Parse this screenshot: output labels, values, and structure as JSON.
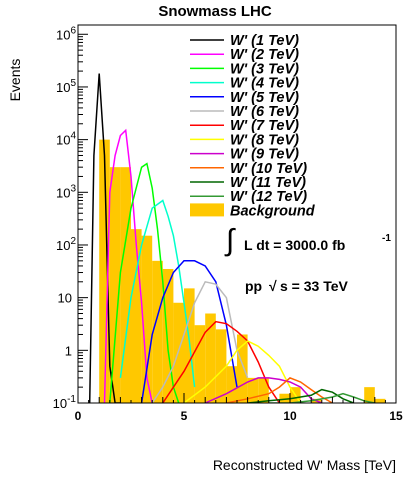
{
  "chart_data": {
    "type": "line",
    "title": "Snowmass LHC",
    "xlabel": "Reconstructed W' Mass [TeV]",
    "ylabel": "Events",
    "xlim": [
      0,
      15
    ],
    "ylim": [
      0.1,
      1500000
    ],
    "yscale": "log",
    "x_ticks": [
      "0",
      "5",
      "10",
      "15"
    ],
    "y_ticks": [
      {
        "base": "10",
        "exp": "-1",
        "value": 0.1
      },
      {
        "base": "1",
        "exp": "",
        "value": 1
      },
      {
        "base": "10",
        "exp": "",
        "value": 10
      },
      {
        "base": "10",
        "exp": "2",
        "value": 100
      },
      {
        "base": "10",
        "exp": "3",
        "value": 1000
      },
      {
        "base": "10",
        "exp": "4",
        "value": 10000
      },
      {
        "base": "10",
        "exp": "5",
        "value": 100000
      },
      {
        "base": "10",
        "exp": "6",
        "value": 1000000
      }
    ],
    "legend_position": "top-right",
    "background": {
      "name": "Background",
      "color": "#ffc800",
      "bin_width": 0.5,
      "bin_edges_start": 0.5,
      "values": [
        0.1,
        10000,
        3000,
        3000,
        200,
        150,
        50,
        35,
        8,
        15,
        3,
        5,
        2.5,
        0.5,
        2,
        0.3,
        0.3,
        0.1,
        0.15,
        0.2,
        0.1,
        0.12,
        0.1,
        0.1,
        0.1,
        0.1,
        0.2,
        0.12
      ]
    },
    "series": [
      {
        "name": "W' (1 TeV)",
        "color": "#000000",
        "x": [
          0.55,
          0.75,
          1.0,
          1.25,
          1.5,
          1.75,
          2.0
        ],
        "values": [
          0.1,
          5000,
          180000,
          5000,
          0.5,
          0.1,
          0.1
        ]
      },
      {
        "name": "W' (2 TeV)",
        "color": "#ff00ff",
        "x": [
          1.25,
          1.5,
          1.75,
          2.0,
          2.25,
          2.5,
          2.75,
          3.0,
          3.25,
          3.5
        ],
        "values": [
          0.1,
          1000,
          5000,
          12000,
          15000,
          2000,
          100,
          8,
          0.3,
          0.1
        ]
      },
      {
        "name": "W' (3 TeV)",
        "color": "#00ff00",
        "x": [
          1.5,
          2.0,
          2.5,
          3.0,
          3.25,
          3.5,
          3.75,
          4.0,
          4.25,
          4.5,
          4.75
        ],
        "values": [
          0.1,
          30,
          500,
          3000,
          3500,
          1200,
          200,
          20,
          1,
          0.2,
          0.1
        ]
      },
      {
        "name": "W' (4 TeV)",
        "color": "#00ffcc",
        "x": [
          2.0,
          2.5,
          3.0,
          3.5,
          4.0,
          4.25,
          4.5,
          4.75,
          5.0,
          5.25,
          5.5
        ],
        "values": [
          0.3,
          10,
          100,
          500,
          700,
          350,
          150,
          40,
          8,
          1.5,
          0.2
        ]
      },
      {
        "name": "W' (5 TeV)",
        "color": "#0000ff",
        "x": [
          3.0,
          3.5,
          4.0,
          4.5,
          5.0,
          5.5,
          6.0,
          6.5,
          7.0,
          7.5
        ],
        "values": [
          0.1,
          2,
          10,
          30,
          50,
          50,
          40,
          20,
          3,
          0.2
        ]
      },
      {
        "name": "W' (6 TeV)",
        "color": "#bbbbbb",
        "x": [
          3.5,
          4.0,
          4.5,
          5.0,
          5.5,
          6.0,
          6.5,
          7.0,
          7.5,
          8.0
        ],
        "values": [
          0.1,
          0.2,
          0.5,
          2,
          8,
          20,
          18,
          10,
          1,
          0.3
        ]
      },
      {
        "name": "W' (7 TeV)",
        "color": "#ff0000",
        "x": [
          4.0,
          5.0,
          6.0,
          6.5,
          7.0,
          7.5,
          8.0,
          8.5,
          9.0,
          9.5
        ],
        "values": [
          0.1,
          0.4,
          2.2,
          3.5,
          3.2,
          2.3,
          1.5,
          0.6,
          0.2,
          0.1
        ]
      },
      {
        "name": "W' (8 TeV)",
        "color": "#ffff00",
        "x": [
          5.0,
          6.0,
          7.0,
          7.5,
          8.0,
          8.5,
          9.0,
          9.5,
          10.0,
          10.5
        ],
        "values": [
          0.1,
          0.2,
          0.5,
          1.0,
          1.5,
          1.2,
          0.8,
          0.5,
          0.2,
          0.1
        ]
      },
      {
        "name": "W' (9 TeV)",
        "color": "#cc00cc",
        "x": [
          6.0,
          7.0,
          8.0,
          8.5,
          9.0,
          9.5,
          10.0,
          10.5,
          11.0,
          11.5
        ],
        "values": [
          0.1,
          0.15,
          0.25,
          0.3,
          0.3,
          0.28,
          0.25,
          0.2,
          0.12,
          0.1
        ]
      },
      {
        "name": "W' (10 TeV)",
        "color": "#ff6600",
        "x": [
          7.0,
          8.0,
          9.0,
          9.5,
          10.0,
          10.5,
          11.0,
          11.5,
          12.0
        ],
        "values": [
          0.1,
          0.12,
          0.15,
          0.2,
          0.3,
          0.25,
          0.18,
          0.13,
          0.1
        ]
      },
      {
        "name": "W' (11 TeV)",
        "color": "#006600",
        "x": [
          8.0,
          9.0,
          10.0,
          11.0,
          11.5,
          12.0,
          12.5,
          13.0
        ],
        "values": [
          0.1,
          0.11,
          0.12,
          0.14,
          0.18,
          0.16,
          0.12,
          0.1
        ]
      },
      {
        "name": "W' (12 TeV)",
        "color": "#339933",
        "x": [
          9.0,
          10.0,
          11.0,
          12.0,
          12.5,
          13.0,
          13.5,
          14.0
        ],
        "values": [
          0.1,
          0.1,
          0.11,
          0.13,
          0.15,
          0.13,
          0.11,
          0.1
        ]
      }
    ],
    "annotations": {
      "luminosity": "L dt = 3000.0 fb",
      "luminosity_exp": "-1",
      "energy_prefix": "pp ",
      "energy_root": "s = 33 TeV",
      "integral": "∫",
      "sqrt": "√"
    }
  }
}
